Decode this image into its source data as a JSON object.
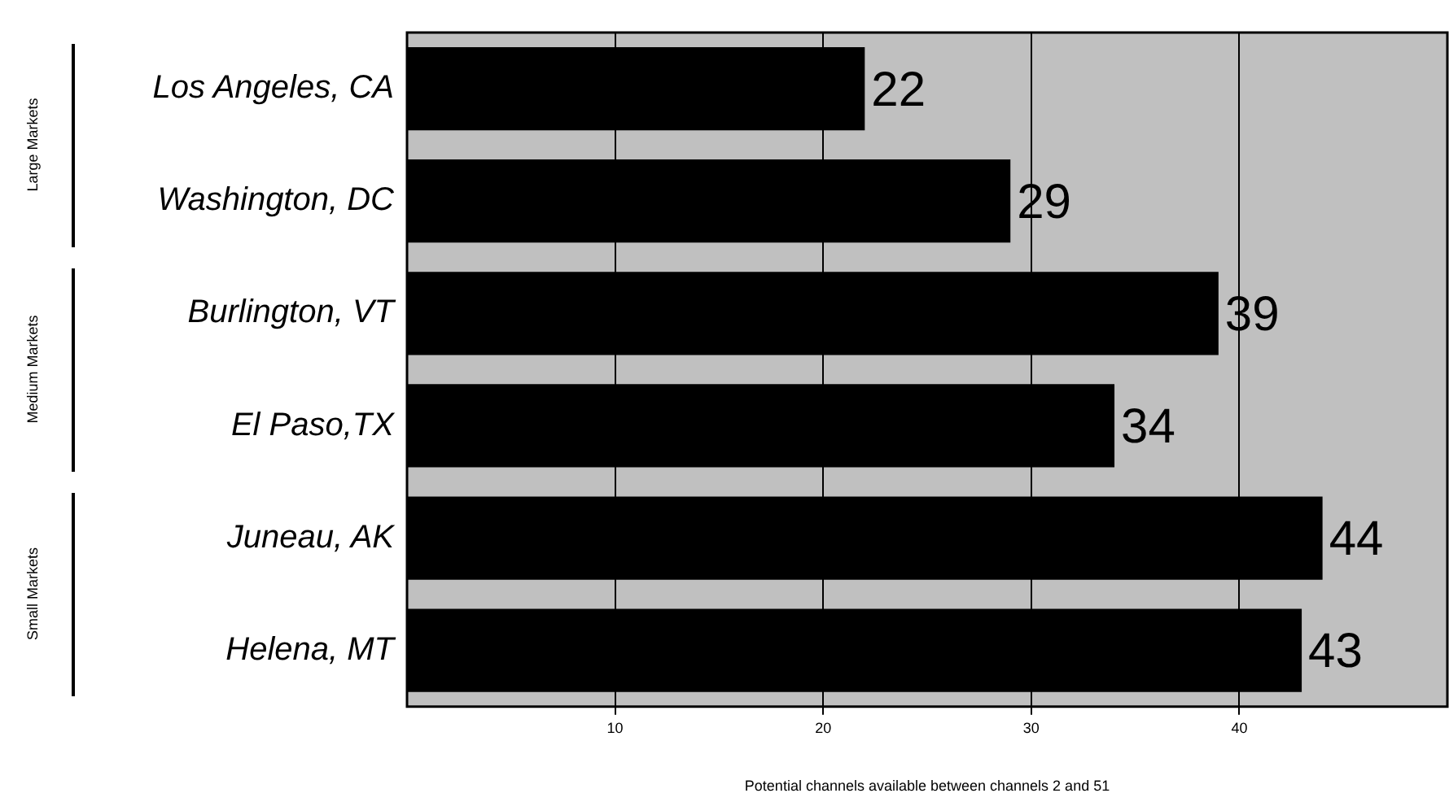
{
  "chart_data": {
    "type": "bar",
    "orientation": "horizontal",
    "categories": [
      "Los Angeles, CA",
      "Washington, DC",
      "Burlington, VT",
      "El Paso,TX",
      "Juneau, AK",
      "Helena, MT"
    ],
    "values": [
      22,
      29,
      39,
      34,
      44,
      43
    ],
    "color": "#000000",
    "xlim": [
      0,
      50
    ],
    "xticks": [
      10,
      20,
      30,
      40
    ],
    "grid": "x",
    "data_labels": true,
    "xlabel": "Potential channels available between channels 2 and 51",
    "annotations": [
      "Large Markets",
      "Medium Markets",
      "Small Markets"
    ]
  }
}
